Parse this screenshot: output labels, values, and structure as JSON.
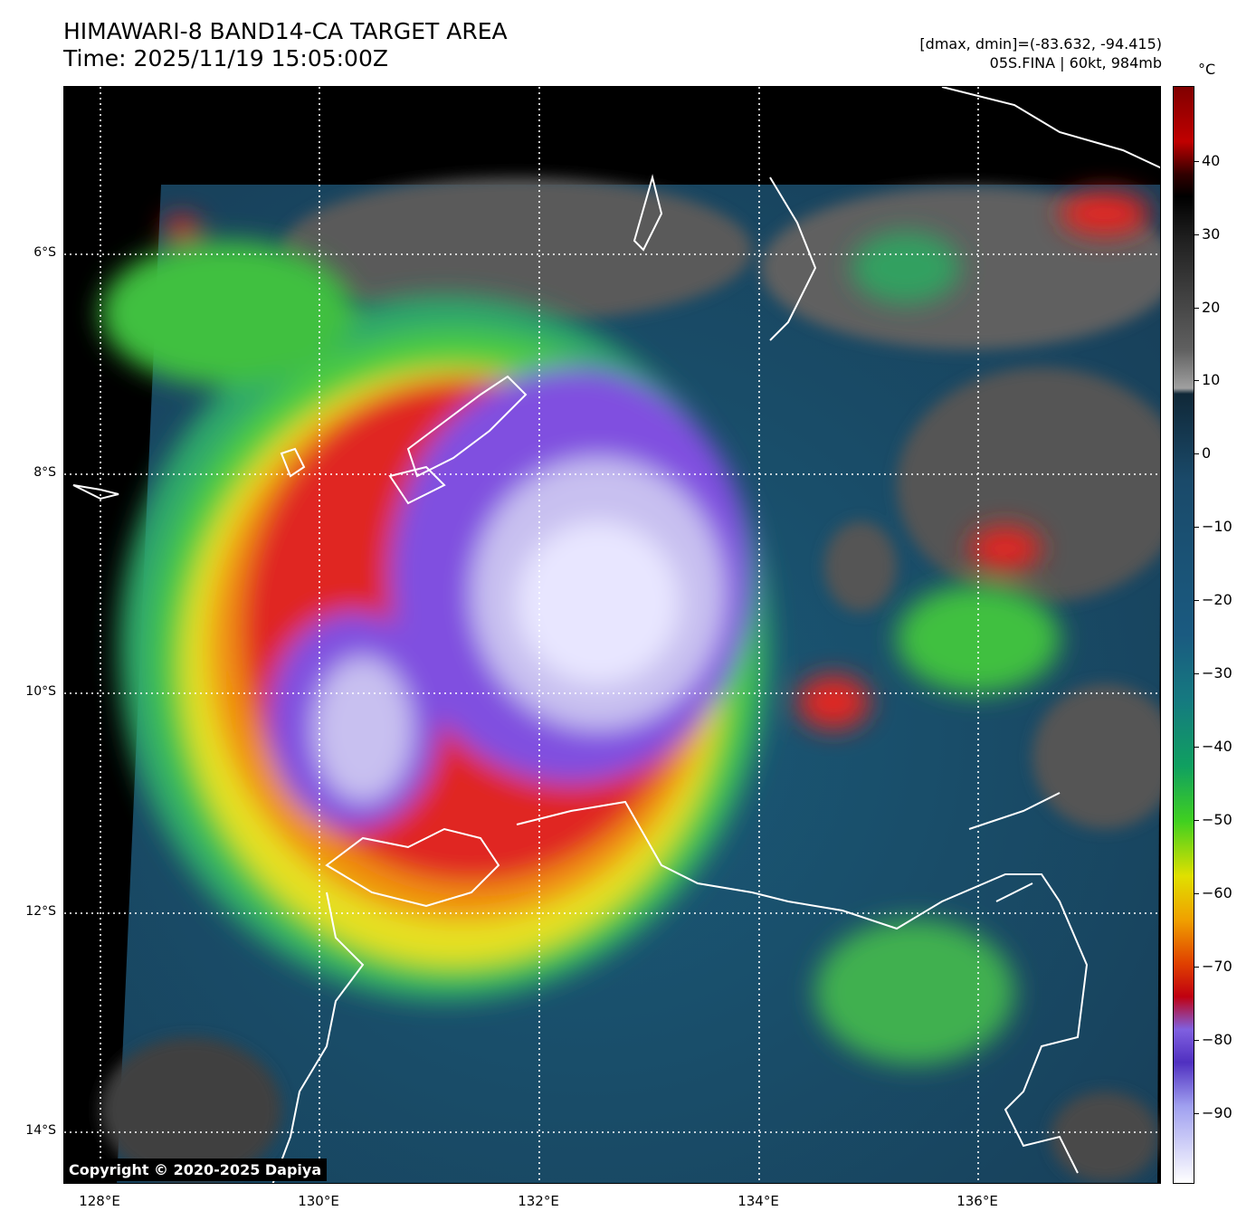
{
  "title": {
    "line1": "HIMAWARI-8 BAND14-CA TARGET AREA",
    "line2": "Time: 2025/11/19 15:05:00Z"
  },
  "info": {
    "range": "[dmax, dmin]=(-83.632, -94.415)",
    "storm": "05S.FINA | 60kt, 984mb"
  },
  "map": {
    "lat_labels": [
      "6°S",
      "8°S",
      "10°S",
      "12°S",
      "14°S"
    ],
    "lon_labels": [
      "128°E",
      "130°E",
      "132°E",
      "134°E",
      "136°E"
    ],
    "copyright": "Copyright © 2020-2025 Dapiya"
  },
  "colorbar": {
    "unit": "°C",
    "ticks": [
      "40",
      "30",
      "20",
      "10",
      "0",
      "−10",
      "−20",
      "−30",
      "−40",
      "−50",
      "−60",
      "−70",
      "−80",
      "−90"
    ]
  }
}
